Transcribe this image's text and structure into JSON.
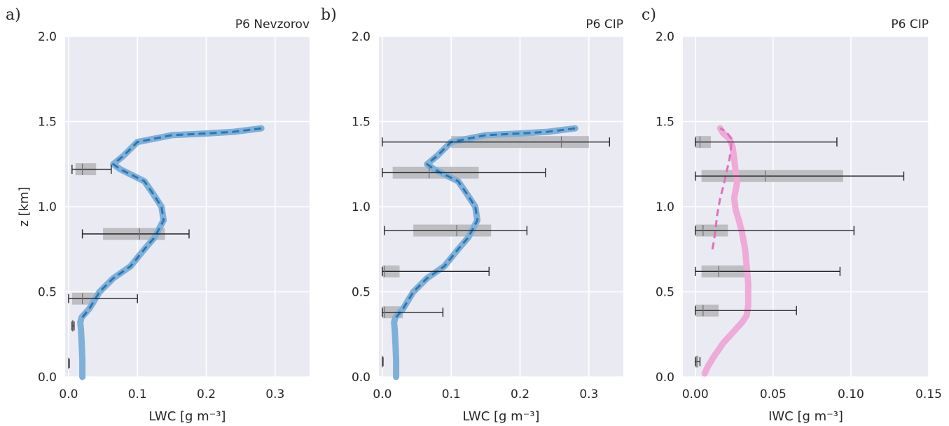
{
  "chart_data": [
    {
      "type": "line",
      "panel_label": "a)",
      "title": "P6 Nevzorov",
      "xlabel": "LWC  [g m⁻³]",
      "ylabel": "z  [km]",
      "xlim": [
        -0.005,
        0.35
      ],
      "ylim": [
        0,
        2.0
      ],
      "xticks": [
        0.0,
        0.1,
        0.2,
        0.3
      ],
      "xtick_labels": [
        "0.0",
        "0.1",
        "0.2",
        "0.3"
      ],
      "yticks": [
        0.0,
        0.5,
        1.0,
        1.5,
        2.0
      ],
      "ytick_labels": [
        "0.0",
        "0.5",
        "1.0",
        "1.5",
        "2.0"
      ],
      "grid": true,
      "colors": {
        "background": "#eaeaf2",
        "profile": "#7fb0d8",
        "mean": "#2a77b4",
        "box": "#bdbdc2",
        "whisker": "#262626"
      },
      "series": [
        {
          "style": "solid-thick",
          "x": [
            0.02,
            0.02,
            0.019,
            0.018,
            0.017,
            0.019,
            0.03,
            0.045,
            0.065,
            0.09,
            0.11,
            0.125,
            0.138,
            0.135,
            0.122,
            0.11,
            0.095,
            0.075,
            0.065,
            0.08,
            0.1,
            0.15,
            0.2,
            0.24,
            0.28
          ],
          "y": [
            0.0,
            0.1,
            0.2,
            0.28,
            0.32,
            0.35,
            0.4,
            0.5,
            0.58,
            0.65,
            0.75,
            0.82,
            0.92,
            1.0,
            1.08,
            1.15,
            1.18,
            1.22,
            1.25,
            1.3,
            1.38,
            1.42,
            1.43,
            1.44,
            1.46
          ]
        },
        {
          "style": "dashed",
          "x": [
            0.02,
            0.03,
            0.045,
            0.065,
            0.09,
            0.11,
            0.125,
            0.138,
            0.135,
            0.122,
            0.11,
            0.095,
            0.075,
            0.065,
            0.08,
            0.1,
            0.15,
            0.2,
            0.24,
            0.28
          ],
          "y": [
            0.35,
            0.4,
            0.5,
            0.58,
            0.65,
            0.75,
            0.82,
            0.92,
            1.0,
            1.08,
            1.15,
            1.18,
            1.22,
            1.25,
            1.3,
            1.38,
            1.42,
            1.43,
            1.44,
            1.46
          ]
        }
      ],
      "boxes": [
        {
          "y": 0.08,
          "wlo": 0.0,
          "q1": 0.0,
          "median": 0.0,
          "q3": 0.001,
          "whi": 0.001
        },
        {
          "y": 0.3,
          "wlo": 0.005,
          "q1": 0.005,
          "median": 0.006,
          "q3": 0.007,
          "whi": 0.008
        },
        {
          "y": 0.46,
          "wlo": 0.0,
          "q1": 0.005,
          "median": 0.02,
          "q3": 0.04,
          "whi": 0.1
        },
        {
          "y": 0.84,
          "wlo": 0.02,
          "q1": 0.05,
          "median": 0.103,
          "q3": 0.14,
          "whi": 0.175
        },
        {
          "y": 1.22,
          "wlo": 0.005,
          "q1": 0.01,
          "median": 0.02,
          "q3": 0.04,
          "whi": 0.062
        }
      ]
    },
    {
      "type": "line",
      "panel_label": "b)",
      "title": "P6 CIP",
      "xlabel": "LWC  [g m⁻³]",
      "ylabel": "",
      "xlim": [
        -0.005,
        0.35
      ],
      "ylim": [
        0,
        2.0
      ],
      "xticks": [
        0.0,
        0.1,
        0.2,
        0.3
      ],
      "xtick_labels": [
        "0.0",
        "0.1",
        "0.2",
        "0.3"
      ],
      "yticks": [
        0.0,
        0.5,
        1.0,
        1.5,
        2.0
      ],
      "ytick_labels": [
        "0.0",
        "0.5",
        "1.0",
        "1.5",
        "2.0"
      ],
      "grid": true,
      "colors": {
        "background": "#eaeaf2",
        "profile": "#7fb0d8",
        "mean": "#2a77b4",
        "box": "#bdbdc2",
        "whisker": "#262626"
      },
      "series": [
        {
          "style": "solid-thick",
          "x": [
            0.02,
            0.02,
            0.019,
            0.018,
            0.017,
            0.019,
            0.03,
            0.045,
            0.065,
            0.09,
            0.11,
            0.125,
            0.138,
            0.135,
            0.122,
            0.11,
            0.095,
            0.075,
            0.065,
            0.08,
            0.1,
            0.15,
            0.2,
            0.24,
            0.28
          ],
          "y": [
            0.0,
            0.1,
            0.2,
            0.28,
            0.32,
            0.35,
            0.4,
            0.5,
            0.58,
            0.65,
            0.75,
            0.82,
            0.92,
            1.0,
            1.08,
            1.15,
            1.18,
            1.22,
            1.25,
            1.3,
            1.38,
            1.42,
            1.43,
            1.44,
            1.46
          ]
        },
        {
          "style": "dashed",
          "x": [
            0.02,
            0.03,
            0.045,
            0.065,
            0.09,
            0.11,
            0.125,
            0.138,
            0.135,
            0.122,
            0.11,
            0.095,
            0.075,
            0.065,
            0.08,
            0.1,
            0.15,
            0.2,
            0.24,
            0.28
          ],
          "y": [
            0.35,
            0.4,
            0.5,
            0.58,
            0.65,
            0.75,
            0.82,
            0.92,
            1.0,
            1.08,
            1.15,
            1.18,
            1.22,
            1.25,
            1.3,
            1.38,
            1.42,
            1.43,
            1.44,
            1.46
          ]
        }
      ],
      "boxes": [
        {
          "y": 0.09,
          "wlo": 0.0,
          "q1": 0.0,
          "median": 0.0,
          "q3": 0.001,
          "whi": 0.001
        },
        {
          "y": 0.38,
          "wlo": 0.0,
          "q1": 0.0,
          "median": 0.003,
          "q3": 0.03,
          "whi": 0.088
        },
        {
          "y": 0.62,
          "wlo": 0.0,
          "q1": 0.0,
          "median": 0.003,
          "q3": 0.025,
          "whi": 0.155
        },
        {
          "y": 0.86,
          "wlo": 0.003,
          "q1": 0.045,
          "median": 0.108,
          "q3": 0.158,
          "whi": 0.21
        },
        {
          "y": 1.2,
          "wlo": 0.0,
          "q1": 0.015,
          "median": 0.068,
          "q3": 0.14,
          "whi": 0.237
        },
        {
          "y": 1.38,
          "wlo": 0.0,
          "q1": 0.1,
          "median": 0.26,
          "q3": 0.3,
          "whi": 0.33
        }
      ]
    },
    {
      "type": "line",
      "panel_label": "c)",
      "title": "P6 CIP",
      "xlabel": "IWC  [g m⁻³]",
      "ylabel": "",
      "xlim": [
        -0.008,
        0.15
      ],
      "ylim": [
        0,
        2.0
      ],
      "xticks": [
        0.0,
        0.05,
        0.1,
        0.15
      ],
      "xtick_labels": [
        "0.00",
        "0.05",
        "0.10",
        "0.15"
      ],
      "yticks": [
        0.0,
        0.5,
        1.0,
        1.5,
        2.0
      ],
      "ytick_labels": [
        "0.0",
        "0.5",
        "1.0",
        "1.5",
        "2.0"
      ],
      "grid": true,
      "colors": {
        "background": "#eaeaf2",
        "profile": "#eeaad8",
        "mean": "#e070bb",
        "box": "#bdbdc2",
        "whisker": "#262626"
      },
      "series": [
        {
          "style": "solid-thick",
          "x": [
            0.006,
            0.008,
            0.012,
            0.018,
            0.025,
            0.03,
            0.033,
            0.034,
            0.034,
            0.033,
            0.032,
            0.03,
            0.028,
            0.026,
            0.025,
            0.026,
            0.027,
            0.026,
            0.025,
            0.024,
            0.022,
            0.018,
            0.016
          ],
          "y": [
            0.02,
            0.06,
            0.12,
            0.2,
            0.27,
            0.32,
            0.36,
            0.42,
            0.55,
            0.65,
            0.75,
            0.85,
            0.92,
            0.98,
            1.05,
            1.1,
            1.15,
            1.2,
            1.28,
            1.35,
            1.4,
            1.43,
            1.46
          ]
        },
        {
          "style": "dashed",
          "x": [
            0.011,
            0.012,
            0.013,
            0.014,
            0.016,
            0.018,
            0.02,
            0.022,
            0.023,
            0.023,
            0.02,
            0.016
          ],
          "y": [
            0.75,
            0.8,
            0.87,
            0.95,
            1.05,
            1.12,
            1.2,
            1.28,
            1.35,
            1.4,
            1.44,
            1.46
          ]
        }
      ],
      "boxes": [
        {
          "y": 0.09,
          "wlo": 0.0,
          "q1": 0.0,
          "median": 0.001,
          "q3": 0.002,
          "whi": 0.003
        },
        {
          "y": 0.39,
          "wlo": 0.0,
          "q1": 0.0,
          "median": 0.005,
          "q3": 0.015,
          "whi": 0.065
        },
        {
          "y": 0.62,
          "wlo": 0.0,
          "q1": 0.004,
          "median": 0.015,
          "q3": 0.035,
          "whi": 0.093
        },
        {
          "y": 0.86,
          "wlo": 0.0,
          "q1": 0.0,
          "median": 0.005,
          "q3": 0.021,
          "whi": 0.102
        },
        {
          "y": 1.18,
          "wlo": 0.0,
          "q1": 0.004,
          "median": 0.045,
          "q3": 0.095,
          "whi": 0.134
        },
        {
          "y": 1.38,
          "wlo": 0.0,
          "q1": 0.0,
          "median": 0.003,
          "q3": 0.01,
          "whi": 0.091
        }
      ]
    }
  ]
}
